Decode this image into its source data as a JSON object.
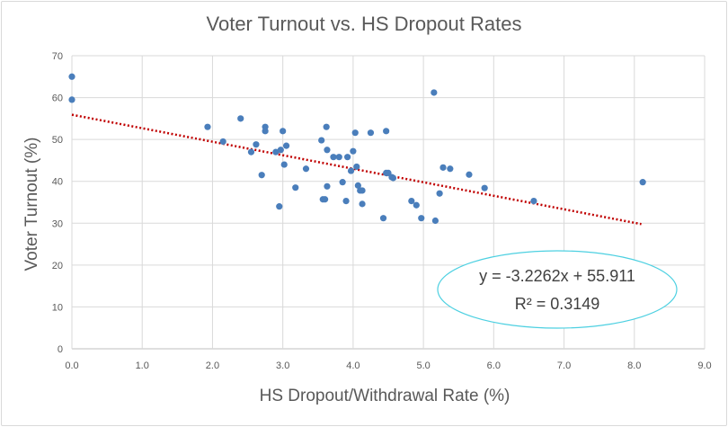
{
  "chart_data": {
    "type": "scatter",
    "title": "Voter Turnout vs. HS Dropout Rates",
    "xlabel": "HS Dropout/Withdrawal Rate (%)",
    "ylabel": "Voter Turnout (%)",
    "xlim": [
      0,
      9
    ],
    "ylim": [
      0,
      70
    ],
    "x_ticks": [
      "0.0",
      "1.0",
      "2.0",
      "3.0",
      "4.0",
      "5.0",
      "6.0",
      "7.0",
      "8.0",
      "9.0"
    ],
    "y_ticks": [
      "0",
      "10",
      "20",
      "30",
      "40",
      "50",
      "60",
      "70"
    ],
    "grid": true,
    "point_color": "#4a7ebb",
    "trendline": {
      "slope": -3.2262,
      "intercept": 55.911,
      "x_range": [
        0,
        8.1
      ],
      "color": "#c00000",
      "style": "dotted",
      "equation": "y = -3.2262x + 55.911",
      "r_squared": "R² = 0.3149"
    },
    "annotation_border_color": "#4dd0e1",
    "points": [
      [
        0.0,
        65.0
      ],
      [
        0.0,
        59.5
      ],
      [
        1.93,
        53.0
      ],
      [
        2.15,
        49.5
      ],
      [
        2.4,
        55.0
      ],
      [
        2.55,
        47.0
      ],
      [
        2.62,
        48.8
      ],
      [
        2.7,
        41.5
      ],
      [
        2.75,
        53.0
      ],
      [
        2.75,
        52.0
      ],
      [
        2.9,
        47.0
      ],
      [
        2.95,
        34.0
      ],
      [
        2.97,
        47.5
      ],
      [
        3.0,
        52.0
      ],
      [
        3.02,
        44.0
      ],
      [
        3.05,
        48.5
      ],
      [
        3.18,
        38.5
      ],
      [
        3.33,
        43.0
      ],
      [
        3.55,
        49.8
      ],
      [
        3.57,
        35.7
      ],
      [
        3.6,
        35.7
      ],
      [
        3.62,
        53.0
      ],
      [
        3.63,
        47.5
      ],
      [
        3.63,
        38.8
      ],
      [
        3.72,
        45.8
      ],
      [
        3.8,
        45.8
      ],
      [
        3.85,
        39.8
      ],
      [
        3.9,
        35.3
      ],
      [
        3.92,
        45.8
      ],
      [
        3.97,
        42.5
      ],
      [
        4.0,
        47.2
      ],
      [
        4.03,
        51.6
      ],
      [
        4.05,
        43.5
      ],
      [
        4.07,
        39.0
      ],
      [
        4.1,
        37.8
      ],
      [
        4.13,
        37.8
      ],
      [
        4.13,
        34.6
      ],
      [
        4.25,
        51.6
      ],
      [
        4.43,
        31.2
      ],
      [
        4.47,
        52.0
      ],
      [
        4.47,
        42.0
      ],
      [
        4.5,
        42.0
      ],
      [
        4.55,
        41.0
      ],
      [
        4.57,
        40.8
      ],
      [
        4.83,
        35.3
      ],
      [
        4.9,
        34.3
      ],
      [
        4.97,
        31.2
      ],
      [
        5.15,
        61.2
      ],
      [
        5.17,
        30.6
      ],
      [
        5.23,
        37.1
      ],
      [
        5.28,
        43.3
      ],
      [
        5.38,
        43.0
      ],
      [
        5.65,
        41.6
      ],
      [
        5.87,
        38.4
      ],
      [
        6.57,
        35.3
      ],
      [
        8.12,
        39.8
      ]
    ]
  }
}
